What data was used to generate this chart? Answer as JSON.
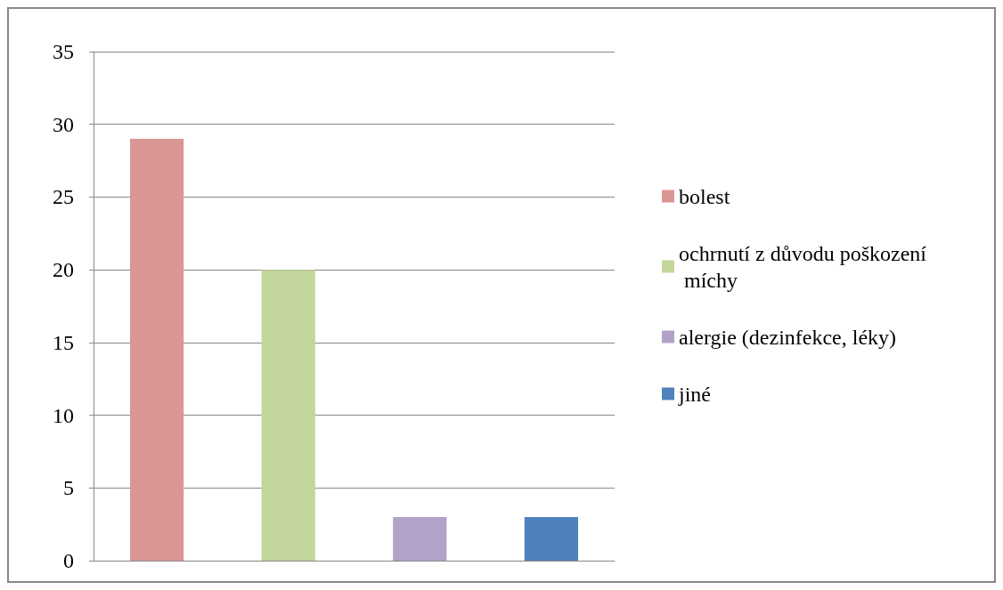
{
  "chart_data": {
    "type": "bar",
    "categories": [
      null
    ],
    "series": [
      {
        "name": "bolest",
        "color": "#d99694",
        "values": [
          29
        ]
      },
      {
        "name": "ochrnutí z důvodu poškození míchy",
        "color": "#c3d69b",
        "values": [
          20
        ]
      },
      {
        "name": "alergie (dezinfekce, léky)",
        "color": "#b3a2c7",
        "values": [
          3
        ]
      },
      {
        "name": "jiné",
        "color": "#4f81bd",
        "values": [
          3
        ]
      }
    ],
    "ylim": [
      0,
      35
    ],
    "yticks": [
      0,
      5,
      10,
      15,
      20,
      25,
      30,
      35
    ],
    "grid": "y",
    "legend": "right"
  }
}
